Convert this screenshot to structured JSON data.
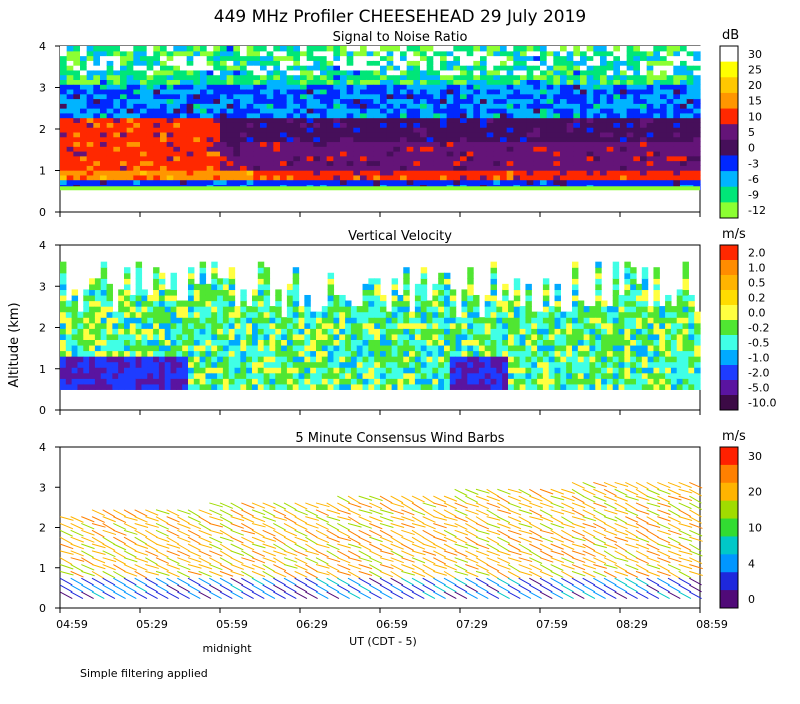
{
  "title": "449 MHz Profiler CHEESEHEAD 29 July 2019",
  "ylabel": "Altitude (km)",
  "xlabel": "UT  (CDT - 5)",
  "midnight_label": "midnight",
  "footnote": "Simple filtering applied",
  "x_ticks": [
    "04:59",
    "05:29",
    "05:59",
    "06:29",
    "06:59",
    "07:29",
    "07:59",
    "08:29",
    "08:59"
  ],
  "y_ticks": [
    "0",
    "1",
    "2",
    "3",
    "4"
  ],
  "chart_data": [
    {
      "type": "heatmap",
      "title": "Signal to Noise Ratio",
      "xlabel": "UT  (CDT - 5)",
      "ylabel": "Altitude (km)",
      "xlim": [
        "04:59",
        "08:59"
      ],
      "ylim": [
        0,
        4
      ],
      "colorbar_unit": "dB",
      "colorbar": [
        {
          "label": "30",
          "color": "#ffffff"
        },
        {
          "label": "25",
          "color": "#ffff00"
        },
        {
          "label": "20",
          "color": "#ffc800"
        },
        {
          "label": "15",
          "color": "#ff9600"
        },
        {
          "label": "10",
          "color": "#ff2800"
        },
        {
          "label": "5",
          "color": "#641478"
        },
        {
          "label": "0",
          "color": "#460f5a"
        },
        {
          "label": "-3",
          "color": "#0028ff"
        },
        {
          "label": "-6",
          "color": "#00b4ff"
        },
        {
          "label": "-9",
          "color": "#00e678"
        },
        {
          "label": "-12",
          "color": "#8cff32"
        }
      ]
    },
    {
      "type": "heatmap",
      "title": "Vertical Velocity",
      "xlabel": "UT  (CDT - 5)",
      "ylabel": "Altitude (km)",
      "xlim": [
        "04:59",
        "08:59"
      ],
      "ylim": [
        0,
        4
      ],
      "colorbar_unit": "m/s",
      "colorbar": [
        {
          "label": "2.0",
          "color": "#ff2800"
        },
        {
          "label": "1.0",
          "color": "#ff8c00"
        },
        {
          "label": "0.5",
          "color": "#ffb400"
        },
        {
          "label": "0.2",
          "color": "#ffdc00"
        },
        {
          "label": "0.0",
          "color": "#ffff40"
        },
        {
          "label": "-0.2",
          "color": "#50e632"
        },
        {
          "label": "-0.5",
          "color": "#40ffe6"
        },
        {
          "label": "-1.0",
          "color": "#00aaff"
        },
        {
          "label": "-2.0",
          "color": "#1e3cff"
        },
        {
          "label": "-5.0",
          "color": "#5a14a0"
        },
        {
          "label": "-10.0",
          "color": "#3c0a46"
        }
      ]
    },
    {
      "type": "scatter",
      "title": "5 Minute Consensus Wind Barbs",
      "xlabel": "UT  (CDT - 5)",
      "ylabel": "Altitude (km)",
      "xlim": [
        "04:59",
        "08:59"
      ],
      "ylim": [
        0,
        4
      ],
      "colorbar_unit": "m/s",
      "colorbar_ticks": [
        "30",
        "20",
        "10",
        "4",
        "0"
      ],
      "colorbar": [
        {
          "label": "30",
          "color": "#ff2000"
        },
        {
          "label": "",
          "color": "#ff8000"
        },
        {
          "label": "20",
          "color": "#ffb400"
        },
        {
          "label": "",
          "color": "#a0dc00"
        },
        {
          "label": "10",
          "color": "#32dc32"
        },
        {
          "label": "",
          "color": "#00c8c8"
        },
        {
          "label": "4",
          "color": "#0096ff"
        },
        {
          "label": "",
          "color": "#1e28dc"
        },
        {
          "label": "0",
          "color": "#500a78"
        }
      ]
    }
  ]
}
